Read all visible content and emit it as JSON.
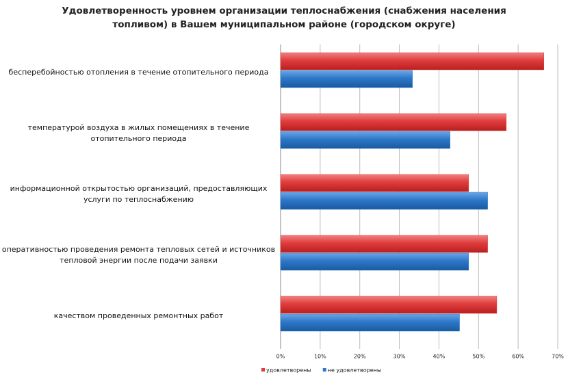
{
  "chart_data": {
    "type": "hbar",
    "title": "Удовлетворенность уровнем организации теплоснабжения (снабжения населения топливом) в Вашем муниципальном районе (городском округе)",
    "categories": [
      "бесперебойностью отопления в течение отопительного периода",
      "температурой воздуха в жилых помещениях в течение отопительного периода",
      "информационной открытостью организаций, предоставляющих услуги по теплоснабжению",
      "оперативностью проведения ремонта тепловых сетей и источников тепловой энергии после подачи заявки",
      "качеством проведенных ремонтных работ"
    ],
    "series": [
      {
        "name": "удовлетворены",
        "color": "#e03c3c",
        "values": [
          66.5,
          57.0,
          47.5,
          52.3,
          54.6
        ]
      },
      {
        "name": "не удовлетворены",
        "color": "#2e78c8",
        "values": [
          33.3,
          42.8,
          52.3,
          47.5,
          45.2
        ]
      }
    ],
    "xlim": [
      0,
      70
    ],
    "xticks": [
      {
        "value": 0,
        "label": "0%"
      },
      {
        "value": 10,
        "label": "10%"
      },
      {
        "value": 20,
        "label": "20%"
      },
      {
        "value": 30,
        "label": "30%"
      },
      {
        "value": 40,
        "label": "40%"
      },
      {
        "value": 50,
        "label": "50%"
      },
      {
        "value": 60,
        "label": "60%"
      },
      {
        "value": 70,
        "label": "70%"
      }
    ],
    "grid": true,
    "legend": "bottom"
  }
}
